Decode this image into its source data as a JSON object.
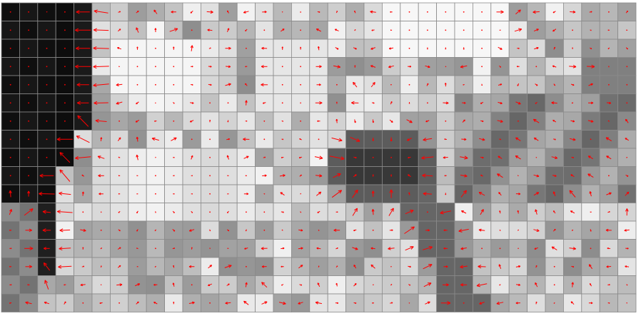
{
  "figure": {
    "kind": "gradient-vector-field",
    "background": "#ffffff",
    "cell_border_color": "#8a8a8a",
    "arrow_color": "#ff0000",
    "grid_cols": 35,
    "grid_rows": 17
  }
}
